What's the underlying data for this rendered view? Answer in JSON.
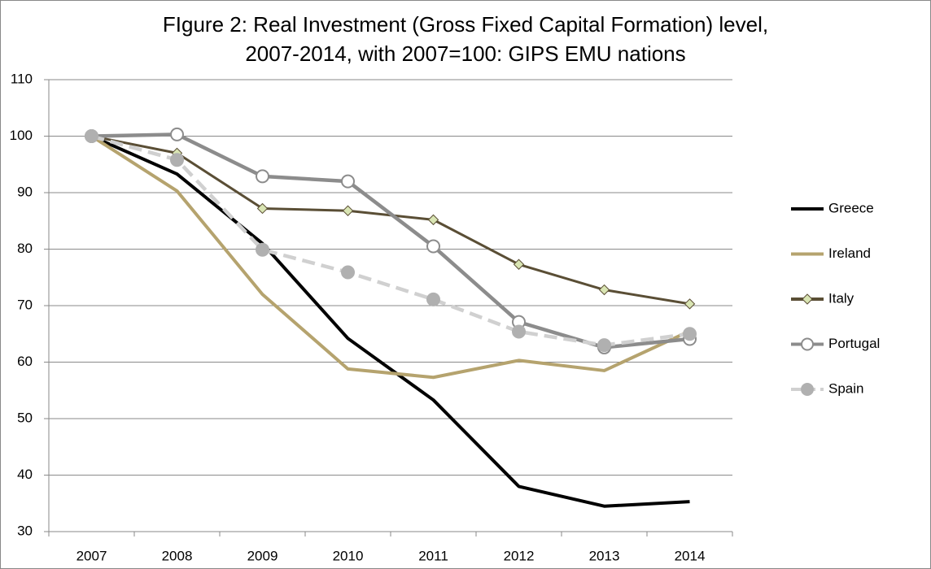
{
  "chart_data": {
    "type": "line",
    "title": [
      "FIgure 2: Real Investment (Gross Fixed Capital Formation) level,",
      "2007-2014, with 2007=100: GIPS EMU nations"
    ],
    "categories": [
      "2007",
      "2008",
      "2009",
      "2010",
      "2011",
      "2012",
      "2013",
      "2014"
    ],
    "series": [
      {
        "name": "Greece",
        "color": "#000000",
        "marker": "none",
        "values": [
          100,
          93.3,
          81,
          64.2,
          53.3,
          38,
          34.5,
          35.3
        ]
      },
      {
        "name": "Ireland",
        "color": "#b5a36e",
        "marker": "none",
        "values": [
          100,
          90.3,
          72,
          58.8,
          57.3,
          60.3,
          58.5,
          65.5
        ]
      },
      {
        "name": "Italy",
        "color": "#5a4e35",
        "marker": "diamond",
        "marker_fill": "#d9e5b3",
        "values": [
          100,
          97,
          87.2,
          86.8,
          85.2,
          77.3,
          72.8,
          70.3
        ]
      },
      {
        "name": "Portugal",
        "color": "#8c8c8c",
        "marker": "circle",
        "marker_fill": "#ffffff",
        "values": [
          100,
          100.3,
          92.9,
          92,
          80.5,
          67.1,
          62.6,
          64.1
        ]
      },
      {
        "name": "Spain",
        "color": "#d0d0d0",
        "marker": "circle",
        "marker_fill": "#b0b0b0",
        "dashed": true,
        "values": [
          100,
          95.8,
          79.9,
          75.9,
          71.1,
          65.4,
          63,
          65
        ]
      }
    ],
    "ylim": [
      30,
      110
    ],
    "yticks": [
      30,
      40,
      50,
      60,
      70,
      80,
      90,
      100,
      110
    ],
    "grid": true,
    "legend": "right"
  }
}
